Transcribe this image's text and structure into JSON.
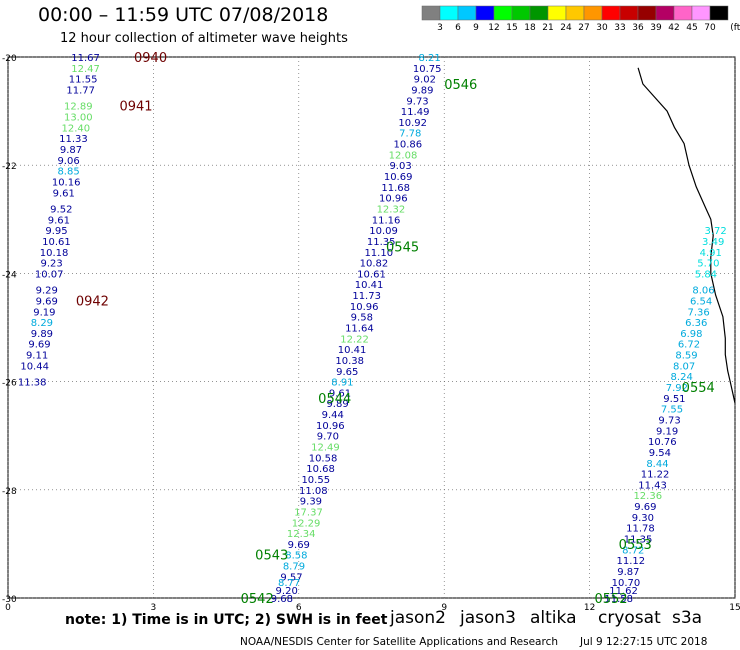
{
  "title": "00:00 – 11:59 UTC 07/08/2018",
  "subtitle": "12 hour collection of altimeter wave heights",
  "colorbar": {
    "labels": [
      "3",
      "6",
      "9",
      "12",
      "15",
      "18",
      "21",
      "24",
      "27",
      "30",
      "33",
      "36",
      "39",
      "42",
      "45",
      "70",
      "(ft)"
    ],
    "colors": [
      "#808080",
      "#00ffff",
      "#00c8ff",
      "#0000ff",
      "#00ff00",
      "#00c800",
      "#009600",
      "#ffff00",
      "#ffc800",
      "#ff9600",
      "#ff0000",
      "#c80000",
      "#960000",
      "#b40064",
      "#ff64c8",
      "#ff96ff",
      "#000000"
    ]
  },
  "axes": {
    "x_ticks": [
      "0",
      "3",
      "6",
      "9",
      "12",
      "15"
    ],
    "y_ticks": [
      "-20",
      "-22",
      "-24",
      "-26",
      "-28",
      "-30"
    ],
    "x_range": [
      0,
      15
    ],
    "y_range": [
      -30,
      -20
    ]
  },
  "passes": [
    {
      "id": "0940",
      "lat": -20.0,
      "lon": 2.6,
      "color": "#6e0000"
    },
    {
      "id": "0941",
      "lat": -20.9,
      "lon": 2.3,
      "color": "#6e0000"
    },
    {
      "id": "0942",
      "lat": -24.5,
      "lon": 1.4,
      "color": "#6e0000"
    },
    {
      "id": "0546",
      "lat": -20.5,
      "lon": 9.0,
      "color": "#008000"
    },
    {
      "id": "0545",
      "lat": -23.5,
      "lon": 7.8,
      "color": "#008000"
    },
    {
      "id": "0544",
      "lat": -26.3,
      "lon": 6.4,
      "color": "#008000"
    },
    {
      "id": "0543",
      "lat": -29.2,
      "lon": 5.1,
      "color": "#008000"
    },
    {
      "id": "0542",
      "lat": -30.0,
      "lon": 4.8,
      "color": "#008000"
    },
    {
      "id": "0554",
      "lat": -26.1,
      "lon": 13.9,
      "color": "#008000"
    },
    {
      "id": "0553",
      "lat": -29.0,
      "lon": 12.6,
      "color": "#008000"
    },
    {
      "id": "0552",
      "lat": -30.0,
      "lon": 12.1,
      "color": "#008000"
    }
  ],
  "tracks": [
    {
      "name": "track-s3a-west",
      "points": [
        {
          "lat": -20.0,
          "lon": 1.6,
          "v": "11.67",
          "c": "#000099"
        },
        {
          "lat": -20.2,
          "lon": 1.6,
          "v": "12.47",
          "c": "#66dd66"
        },
        {
          "lat": -20.4,
          "lon": 1.55,
          "v": "11.55",
          "c": "#000099"
        },
        {
          "lat": -20.6,
          "lon": 1.5,
          "v": "11.77",
          "c": "#000099"
        },
        {
          "lat": -20.9,
          "lon": 1.45,
          "v": "12.89",
          "c": "#66dd66"
        },
        {
          "lat": -21.1,
          "lon": 1.45,
          "v": "13.00",
          "c": "#66dd66"
        },
        {
          "lat": -21.3,
          "lon": 1.4,
          "v": "12.40",
          "c": "#66dd66"
        },
        {
          "lat": -21.5,
          "lon": 1.35,
          "v": "11.33",
          "c": "#000099"
        },
        {
          "lat": -21.7,
          "lon": 1.3,
          "v": "9.87",
          "c": "#000099"
        },
        {
          "lat": -21.9,
          "lon": 1.25,
          "v": "9.06",
          "c": "#000099"
        },
        {
          "lat": -22.1,
          "lon": 1.25,
          "v": "8.85",
          "c": "#00aadd"
        },
        {
          "lat": -22.3,
          "lon": 1.2,
          "v": "10.16",
          "c": "#000099"
        },
        {
          "lat": -22.5,
          "lon": 1.15,
          "v": "9.61",
          "c": "#000099"
        },
        {
          "lat": -22.8,
          "lon": 1.1,
          "v": "9.52",
          "c": "#000099"
        },
        {
          "lat": -23.0,
          "lon": 1.05,
          "v": "9.61",
          "c": "#000099"
        },
        {
          "lat": -23.2,
          "lon": 1.0,
          "v": "9.95",
          "c": "#000099"
        },
        {
          "lat": -23.4,
          "lon": 1.0,
          "v": "10.61",
          "c": "#000099"
        },
        {
          "lat": -23.6,
          "lon": 0.95,
          "v": "10.18",
          "c": "#000099"
        },
        {
          "lat": -23.8,
          "lon": 0.9,
          "v": "9.23",
          "c": "#000099"
        },
        {
          "lat": -24.0,
          "lon": 0.85,
          "v": "10.07",
          "c": "#000099"
        },
        {
          "lat": -24.3,
          "lon": 0.8,
          "v": "9.29",
          "c": "#000099"
        },
        {
          "lat": -24.5,
          "lon": 0.8,
          "v": "9.69",
          "c": "#000099"
        },
        {
          "lat": -24.7,
          "lon": 0.75,
          "v": "9.19",
          "c": "#000099"
        },
        {
          "lat": -24.9,
          "lon": 0.7,
          "v": "8.29",
          "c": "#00aadd"
        },
        {
          "lat": -25.1,
          "lon": 0.7,
          "v": "9.89",
          "c": "#000099"
        },
        {
          "lat": -25.3,
          "lon": 0.65,
          "v": "9.69",
          "c": "#000099"
        },
        {
          "lat": -25.5,
          "lon": 0.6,
          "v": "9.11",
          "c": "#000099"
        },
        {
          "lat": -25.7,
          "lon": 0.55,
          "v": "10.44",
          "c": "#000099"
        },
        {
          "lat": -26.0,
          "lon": 0.5,
          "v": "11.38",
          "c": "#000099"
        }
      ]
    },
    {
      "name": "track-jason-mid",
      "points": [
        {
          "lat": -20.0,
          "lon": 8.7,
          "v": "8.21",
          "c": "#00aadd"
        },
        {
          "lat": -20.2,
          "lon": 8.65,
          "v": "10.75",
          "c": "#000099"
        },
        {
          "lat": -20.4,
          "lon": 8.6,
          "v": "9.02",
          "c": "#000099"
        },
        {
          "lat": -20.6,
          "lon": 8.55,
          "v": "9.89",
          "c": "#000099"
        },
        {
          "lat": -20.8,
          "lon": 8.45,
          "v": "9.73",
          "c": "#000099"
        },
        {
          "lat": -21.0,
          "lon": 8.4,
          "v": "11.49",
          "c": "#000099"
        },
        {
          "lat": -21.2,
          "lon": 8.35,
          "v": "10.92",
          "c": "#000099"
        },
        {
          "lat": -21.4,
          "lon": 8.3,
          "v": "7.78",
          "c": "#00aadd"
        },
        {
          "lat": -21.6,
          "lon": 8.25,
          "v": "10.86",
          "c": "#000099"
        },
        {
          "lat": -21.8,
          "lon": 8.15,
          "v": "12.08",
          "c": "#66dd66"
        },
        {
          "lat": -22.0,
          "lon": 8.1,
          "v": "9.03",
          "c": "#000099"
        },
        {
          "lat": -22.2,
          "lon": 8.05,
          "v": "10.69",
          "c": "#000099"
        },
        {
          "lat": -22.4,
          "lon": 8.0,
          "v": "11.68",
          "c": "#000099"
        },
        {
          "lat": -22.6,
          "lon": 7.95,
          "v": "10.96",
          "c": "#000099"
        },
        {
          "lat": -22.8,
          "lon": 7.9,
          "v": "12.32",
          "c": "#66dd66"
        },
        {
          "lat": -23.0,
          "lon": 7.8,
          "v": "11.16",
          "c": "#000099"
        },
        {
          "lat": -23.2,
          "lon": 7.75,
          "v": "10.09",
          "c": "#000099"
        },
        {
          "lat": -23.4,
          "lon": 7.7,
          "v": "11.35",
          "c": "#000099"
        },
        {
          "lat": -23.6,
          "lon": 7.65,
          "v": "11.10",
          "c": "#000099"
        },
        {
          "lat": -23.8,
          "lon": 7.55,
          "v": "10.82",
          "c": "#000099"
        },
        {
          "lat": -24.0,
          "lon": 7.5,
          "v": "10.61",
          "c": "#000099"
        },
        {
          "lat": -24.2,
          "lon": 7.45,
          "v": "10.41",
          "c": "#000099"
        },
        {
          "lat": -24.4,
          "lon": 7.4,
          "v": "11.73",
          "c": "#000099"
        },
        {
          "lat": -24.6,
          "lon": 7.35,
          "v": "10.96",
          "c": "#000099"
        },
        {
          "lat": -24.8,
          "lon": 7.3,
          "v": "9.58",
          "c": "#000099"
        },
        {
          "lat": -25.0,
          "lon": 7.25,
          "v": "11.64",
          "c": "#000099"
        },
        {
          "lat": -25.2,
          "lon": 7.15,
          "v": "12.22",
          "c": "#66dd66"
        },
        {
          "lat": -25.4,
          "lon": 7.1,
          "v": "10.41",
          "c": "#000099"
        },
        {
          "lat": -25.6,
          "lon": 7.05,
          "v": "10.38",
          "c": "#000099"
        },
        {
          "lat": -25.8,
          "lon": 7.0,
          "v": "9.65",
          "c": "#000099"
        },
        {
          "lat": -26.0,
          "lon": 6.9,
          "v": "8.91",
          "c": "#00aadd"
        },
        {
          "lat": -26.2,
          "lon": 6.85,
          "v": "9.61",
          "c": "#000099"
        },
        {
          "lat": -26.4,
          "lon": 6.8,
          "v": "9.89",
          "c": "#000099"
        },
        {
          "lat": -26.6,
          "lon": 6.7,
          "v": "9.44",
          "c": "#000099"
        },
        {
          "lat": -26.8,
          "lon": 6.65,
          "v": "10.96",
          "c": "#000099"
        },
        {
          "lat": -27.0,
          "lon": 6.6,
          "v": "9.70",
          "c": "#000099"
        },
        {
          "lat": -27.2,
          "lon": 6.55,
          "v": "12.49",
          "c": "#66dd66"
        },
        {
          "lat": -27.4,
          "lon": 6.5,
          "v": "10.58",
          "c": "#000099"
        },
        {
          "lat": -27.6,
          "lon": 6.45,
          "v": "10.68",
          "c": "#000099"
        },
        {
          "lat": -27.8,
          "lon": 6.35,
          "v": "10.55",
          "c": "#000099"
        },
        {
          "lat": -28.0,
          "lon": 6.3,
          "v": "11.08",
          "c": "#000099"
        },
        {
          "lat": -28.2,
          "lon": 6.25,
          "v": "9.39",
          "c": "#000099"
        },
        {
          "lat": -28.4,
          "lon": 6.2,
          "v": "17.37",
          "c": "#66dd66"
        },
        {
          "lat": -28.6,
          "lon": 6.15,
          "v": "12.29",
          "c": "#66dd66"
        },
        {
          "lat": -28.8,
          "lon": 6.05,
          "v": "12.34",
          "c": "#66dd66"
        },
        {
          "lat": -29.0,
          "lon": 6.0,
          "v": "9.69",
          "c": "#000099"
        },
        {
          "lat": -29.2,
          "lon": 5.95,
          "v": "8.58",
          "c": "#00aadd"
        },
        {
          "lat": -29.4,
          "lon": 5.9,
          "v": "8.79",
          "c": "#00aadd"
        },
        {
          "lat": -29.6,
          "lon": 5.85,
          "v": "9.57",
          "c": "#000099"
        },
        {
          "lat": -29.7,
          "lon": 5.8,
          "v": "8.77",
          "c": "#00aadd"
        },
        {
          "lat": -29.85,
          "lon": 5.75,
          "v": "9.20",
          "c": "#000099"
        },
        {
          "lat": -30.0,
          "lon": 5.65,
          "v": "9.68",
          "c": "#000099"
        }
      ]
    },
    {
      "name": "track-jason-east",
      "points": [
        {
          "lat": -23.2,
          "lon": 14.6,
          "v": "3.72",
          "c": "#00dddd"
        },
        {
          "lat": -23.4,
          "lon": 14.55,
          "v": "3.49",
          "c": "#00dddd"
        },
        {
          "lat": -23.6,
          "lon": 14.5,
          "v": "4.91",
          "c": "#00dddd"
        },
        {
          "lat": -23.8,
          "lon": 14.45,
          "v": "5.70",
          "c": "#00dddd"
        },
        {
          "lat": -24.0,
          "lon": 14.4,
          "v": "5.84",
          "c": "#00dddd"
        },
        {
          "lat": -24.3,
          "lon": 14.35,
          "v": "8.06",
          "c": "#00aadd"
        },
        {
          "lat": -24.5,
          "lon": 14.3,
          "v": "6.54",
          "c": "#00aadd"
        },
        {
          "lat": -24.7,
          "lon": 14.25,
          "v": "7.36",
          "c": "#00aadd"
        },
        {
          "lat": -24.9,
          "lon": 14.2,
          "v": "6.36",
          "c": "#00aadd"
        },
        {
          "lat": -25.1,
          "lon": 14.1,
          "v": "6.98",
          "c": "#00aadd"
        },
        {
          "lat": -25.3,
          "lon": 14.05,
          "v": "6.72",
          "c": "#00aadd"
        },
        {
          "lat": -25.5,
          "lon": 14.0,
          "v": "8.59",
          "c": "#00aadd"
        },
        {
          "lat": -25.7,
          "lon": 13.95,
          "v": "8.07",
          "c": "#00aadd"
        },
        {
          "lat": -25.9,
          "lon": 13.9,
          "v": "8.24",
          "c": "#00aadd"
        },
        {
          "lat": -26.1,
          "lon": 13.8,
          "v": "7.92",
          "c": "#00aadd"
        },
        {
          "lat": -26.3,
          "lon": 13.75,
          "v": "9.51",
          "c": "#000099"
        },
        {
          "lat": -26.5,
          "lon": 13.7,
          "v": "7.55",
          "c": "#00aadd"
        },
        {
          "lat": -26.7,
          "lon": 13.65,
          "v": "9.73",
          "c": "#000099"
        },
        {
          "lat": -26.9,
          "lon": 13.6,
          "v": "9.19",
          "c": "#000099"
        },
        {
          "lat": -27.1,
          "lon": 13.5,
          "v": "10.76",
          "c": "#000099"
        },
        {
          "lat": -27.3,
          "lon": 13.45,
          "v": "9.54",
          "c": "#000099"
        },
        {
          "lat": -27.5,
          "lon": 13.4,
          "v": "8.44",
          "c": "#00aadd"
        },
        {
          "lat": -27.7,
          "lon": 13.35,
          "v": "11.22",
          "c": "#000099"
        },
        {
          "lat": -27.9,
          "lon": 13.3,
          "v": "11.43",
          "c": "#000099"
        },
        {
          "lat": -28.1,
          "lon": 13.2,
          "v": "12.36",
          "c": "#66dd66"
        },
        {
          "lat": -28.3,
          "lon": 13.15,
          "v": "9.69",
          "c": "#000099"
        },
        {
          "lat": -28.5,
          "lon": 13.1,
          "v": "9.30",
          "c": "#000099"
        },
        {
          "lat": -28.7,
          "lon": 13.05,
          "v": "11.78",
          "c": "#000099"
        },
        {
          "lat": -28.9,
          "lon": 13.0,
          "v": "11.35",
          "c": "#000099"
        },
        {
          "lat": -29.1,
          "lon": 12.9,
          "v": "8.72",
          "c": "#00aadd"
        },
        {
          "lat": -29.3,
          "lon": 12.85,
          "v": "11.12",
          "c": "#000099"
        },
        {
          "lat": -29.5,
          "lon": 12.8,
          "v": "9.87",
          "c": "#000099"
        },
        {
          "lat": -29.7,
          "lon": 12.75,
          "v": "10.70",
          "c": "#000099"
        },
        {
          "lat": -29.85,
          "lon": 12.7,
          "v": "11.62",
          "c": "#000099"
        },
        {
          "lat": -30.0,
          "lon": 12.6,
          "v": "11.58",
          "c": "#000099"
        }
      ]
    }
  ],
  "coastline": [
    [
      -20.2,
      13.0
    ],
    [
      -20.5,
      13.1
    ],
    [
      -20.7,
      13.3
    ],
    [
      -21.0,
      13.6
    ],
    [
      -21.3,
      13.75
    ],
    [
      -21.6,
      13.95
    ],
    [
      -22.0,
      14.05
    ],
    [
      -22.4,
      14.2
    ],
    [
      -22.8,
      14.4
    ],
    [
      -23.0,
      14.5
    ],
    [
      -23.3,
      14.55
    ],
    [
      -23.7,
      14.5
    ],
    [
      -24.0,
      14.5
    ],
    [
      -24.4,
      14.6
    ],
    [
      -24.8,
      14.75
    ],
    [
      -25.2,
      14.8
    ],
    [
      -25.5,
      14.8
    ],
    [
      -25.8,
      14.85
    ],
    [
      -26.0,
      14.9
    ],
    [
      -26.2,
      14.95
    ],
    [
      -26.4,
      15.0
    ]
  ],
  "footer": {
    "note": "note:  1) Time is in UTC;  2) SWH is in feet",
    "satellites": [
      {
        "name": "jason2",
        "color": "#0000ff"
      },
      {
        "name": "jason3",
        "color": "#009600"
      },
      {
        "name": "altika",
        "color": "#ff9600"
      },
      {
        "name": "cryosat",
        "color": "#ff0000"
      },
      {
        "name": "s3a",
        "color": "#960000"
      }
    ],
    "credit": "NOAA/NESDIS Center for Satellite Applications and Research",
    "timestamp": "Jul  9 12:27:15 UTC 2018"
  }
}
